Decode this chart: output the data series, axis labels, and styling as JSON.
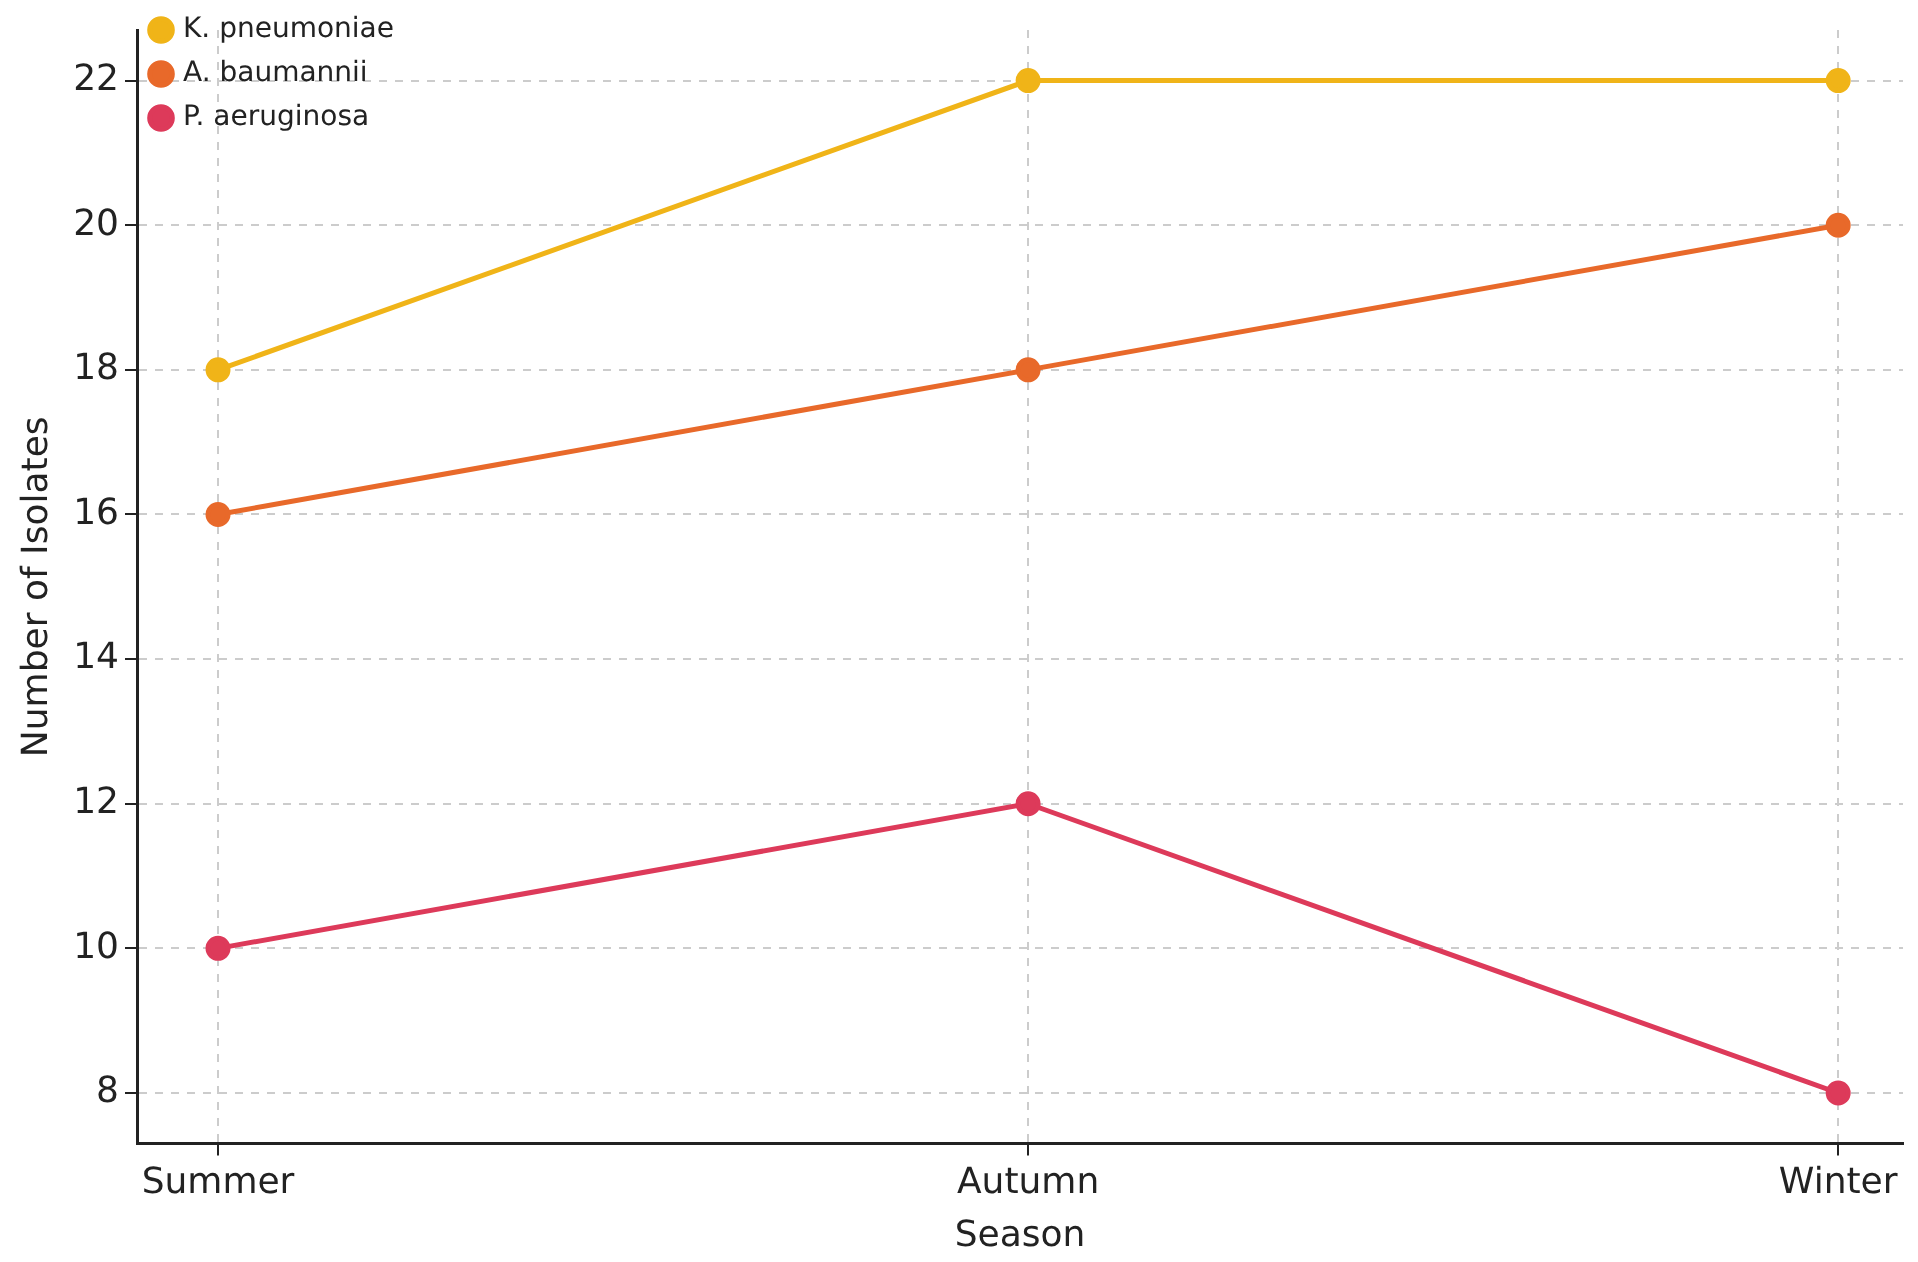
{
  "chart_data": {
    "type": "line",
    "xlabel": "Season",
    "ylabel": "Number of Isolates",
    "categories": [
      "Summer",
      "Autumn",
      "Winter"
    ],
    "series": [
      {
        "name": "K. pneumoniae",
        "color": "#f0b418",
        "values": [
          18,
          22,
          22
        ]
      },
      {
        "name": "A. baumannii",
        "color": "#e8692a",
        "values": [
          16,
          18,
          20
        ]
      },
      {
        "name": "P. aeruginosa",
        "color": "#dd3a5a",
        "values": [
          10,
          12,
          8
        ]
      }
    ],
    "ylim": [
      7.3,
      22.7
    ],
    "yticks": [
      8,
      10,
      12,
      14,
      16,
      18,
      20,
      22
    ],
    "grid": true,
    "legend": "top left",
    "marker": "circle",
    "line_style": "solid"
  }
}
